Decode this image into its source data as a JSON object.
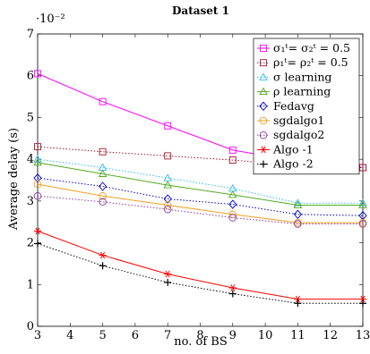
{
  "chart_data": {
    "type": "line",
    "title": "Dataset 1",
    "xlabel": "no. of BS",
    "ylabel": "Average delay (s)",
    "y_multiplier": "·10⁻²",
    "x": [
      3,
      5,
      7,
      9,
      11,
      13
    ],
    "xlim": [
      3,
      13
    ],
    "ylim": [
      0,
      7
    ],
    "xticks": [
      "3",
      "4",
      "5",
      "6",
      "7",
      "8",
      "9",
      "10",
      "11",
      "12",
      "13"
    ],
    "yticks": [
      "0",
      "1",
      "2",
      "3",
      "4",
      "5",
      "6",
      "7"
    ],
    "legend_position": "top-right",
    "grid": false,
    "series": [
      {
        "name": "σ₁ᵗ= σ₂ᵗ = 0.5",
        "color": "#ff00ff",
        "marker": "square",
        "dash": "solid",
        "values": [
          6.05,
          5.38,
          4.8,
          4.22,
          3.95,
          3.8
        ]
      },
      {
        "name": "ρ₁ᵗ= ρ₂ᵗ = 0.5",
        "color": "#a0182a",
        "marker": "square",
        "dash": "dotted",
        "values": [
          4.3,
          4.18,
          4.08,
          3.98,
          3.85,
          3.8
        ]
      },
      {
        "name": "σ learning",
        "color": "#33bbee",
        "marker": "triangle",
        "dash": "dotted",
        "values": [
          4.0,
          3.8,
          3.55,
          3.3,
          2.95,
          2.95
        ]
      },
      {
        "name": "ρ learning",
        "color": "#55aa22",
        "marker": "triangle",
        "dash": "solid",
        "values": [
          3.92,
          3.65,
          3.38,
          3.15,
          2.9,
          2.9
        ]
      },
      {
        "name": "Fedavg",
        "color": "#0000cc",
        "marker": "diamond",
        "dash": "dotted",
        "values": [
          3.55,
          3.35,
          3.05,
          2.92,
          2.68,
          2.65
        ]
      },
      {
        "name": "sgdalgo1",
        "color": "#f0a020",
        "marker": "circle",
        "dash": "solid",
        "values": [
          3.4,
          3.12,
          2.9,
          2.68,
          2.48,
          2.48
        ]
      },
      {
        "name": "sgdalgo2",
        "color": "#8a3aa0",
        "marker": "circle",
        "dash": "dotted",
        "values": [
          3.12,
          2.98,
          2.8,
          2.6,
          2.45,
          2.45
        ]
      },
      {
        "name": "Algo -1",
        "color": "#ff0000",
        "marker": "asterisk",
        "dash": "solid",
        "values": [
          2.28,
          1.7,
          1.25,
          0.92,
          0.65,
          0.65
        ]
      },
      {
        "name": "Algo -2",
        "color": "#000000",
        "marker": "plus",
        "dash": "dotted",
        "values": [
          1.98,
          1.45,
          1.05,
          0.78,
          0.55,
          0.55
        ]
      }
    ]
  }
}
